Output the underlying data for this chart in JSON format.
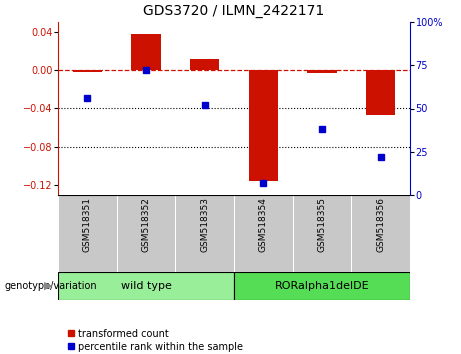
{
  "title": "GDS3720 / ILMN_2422171",
  "samples": [
    "GSM518351",
    "GSM518352",
    "GSM518353",
    "GSM518354",
    "GSM518355",
    "GSM518356"
  ],
  "red_bars": [
    -0.002,
    0.038,
    0.012,
    -0.115,
    -0.003,
    -0.047
  ],
  "blue_dots": [
    0.56,
    0.72,
    0.52,
    0.07,
    0.38,
    0.22
  ],
  "ylim_left": [
    -0.13,
    0.05
  ],
  "ylim_right": [
    0,
    1.0
  ],
  "yticks_left": [
    -0.12,
    -0.08,
    -0.04,
    0.0,
    0.04
  ],
  "yticks_right": [
    0,
    0.25,
    0.5,
    0.75,
    1.0
  ],
  "ytick_labels_right": [
    "0",
    "25",
    "50",
    "75",
    "100%"
  ],
  "hline_y": 0.0,
  "dotted_lines": [
    -0.04,
    -0.08
  ],
  "group1_label": "wild type",
  "group2_label": "RORalpha1delDE",
  "genotype_label": "genotype/variation",
  "legend1": "transformed count",
  "legend2": "percentile rank within the sample",
  "bar_color": "#cc1100",
  "dot_color": "#0000cc",
  "group1_color": "#99ee99",
  "group2_color": "#55dd55",
  "bg_color": "#c8c8c8",
  "plot_bg": "#ffffff",
  "title_fontsize": 10,
  "tick_fontsize": 7,
  "label_fontsize": 7.5
}
